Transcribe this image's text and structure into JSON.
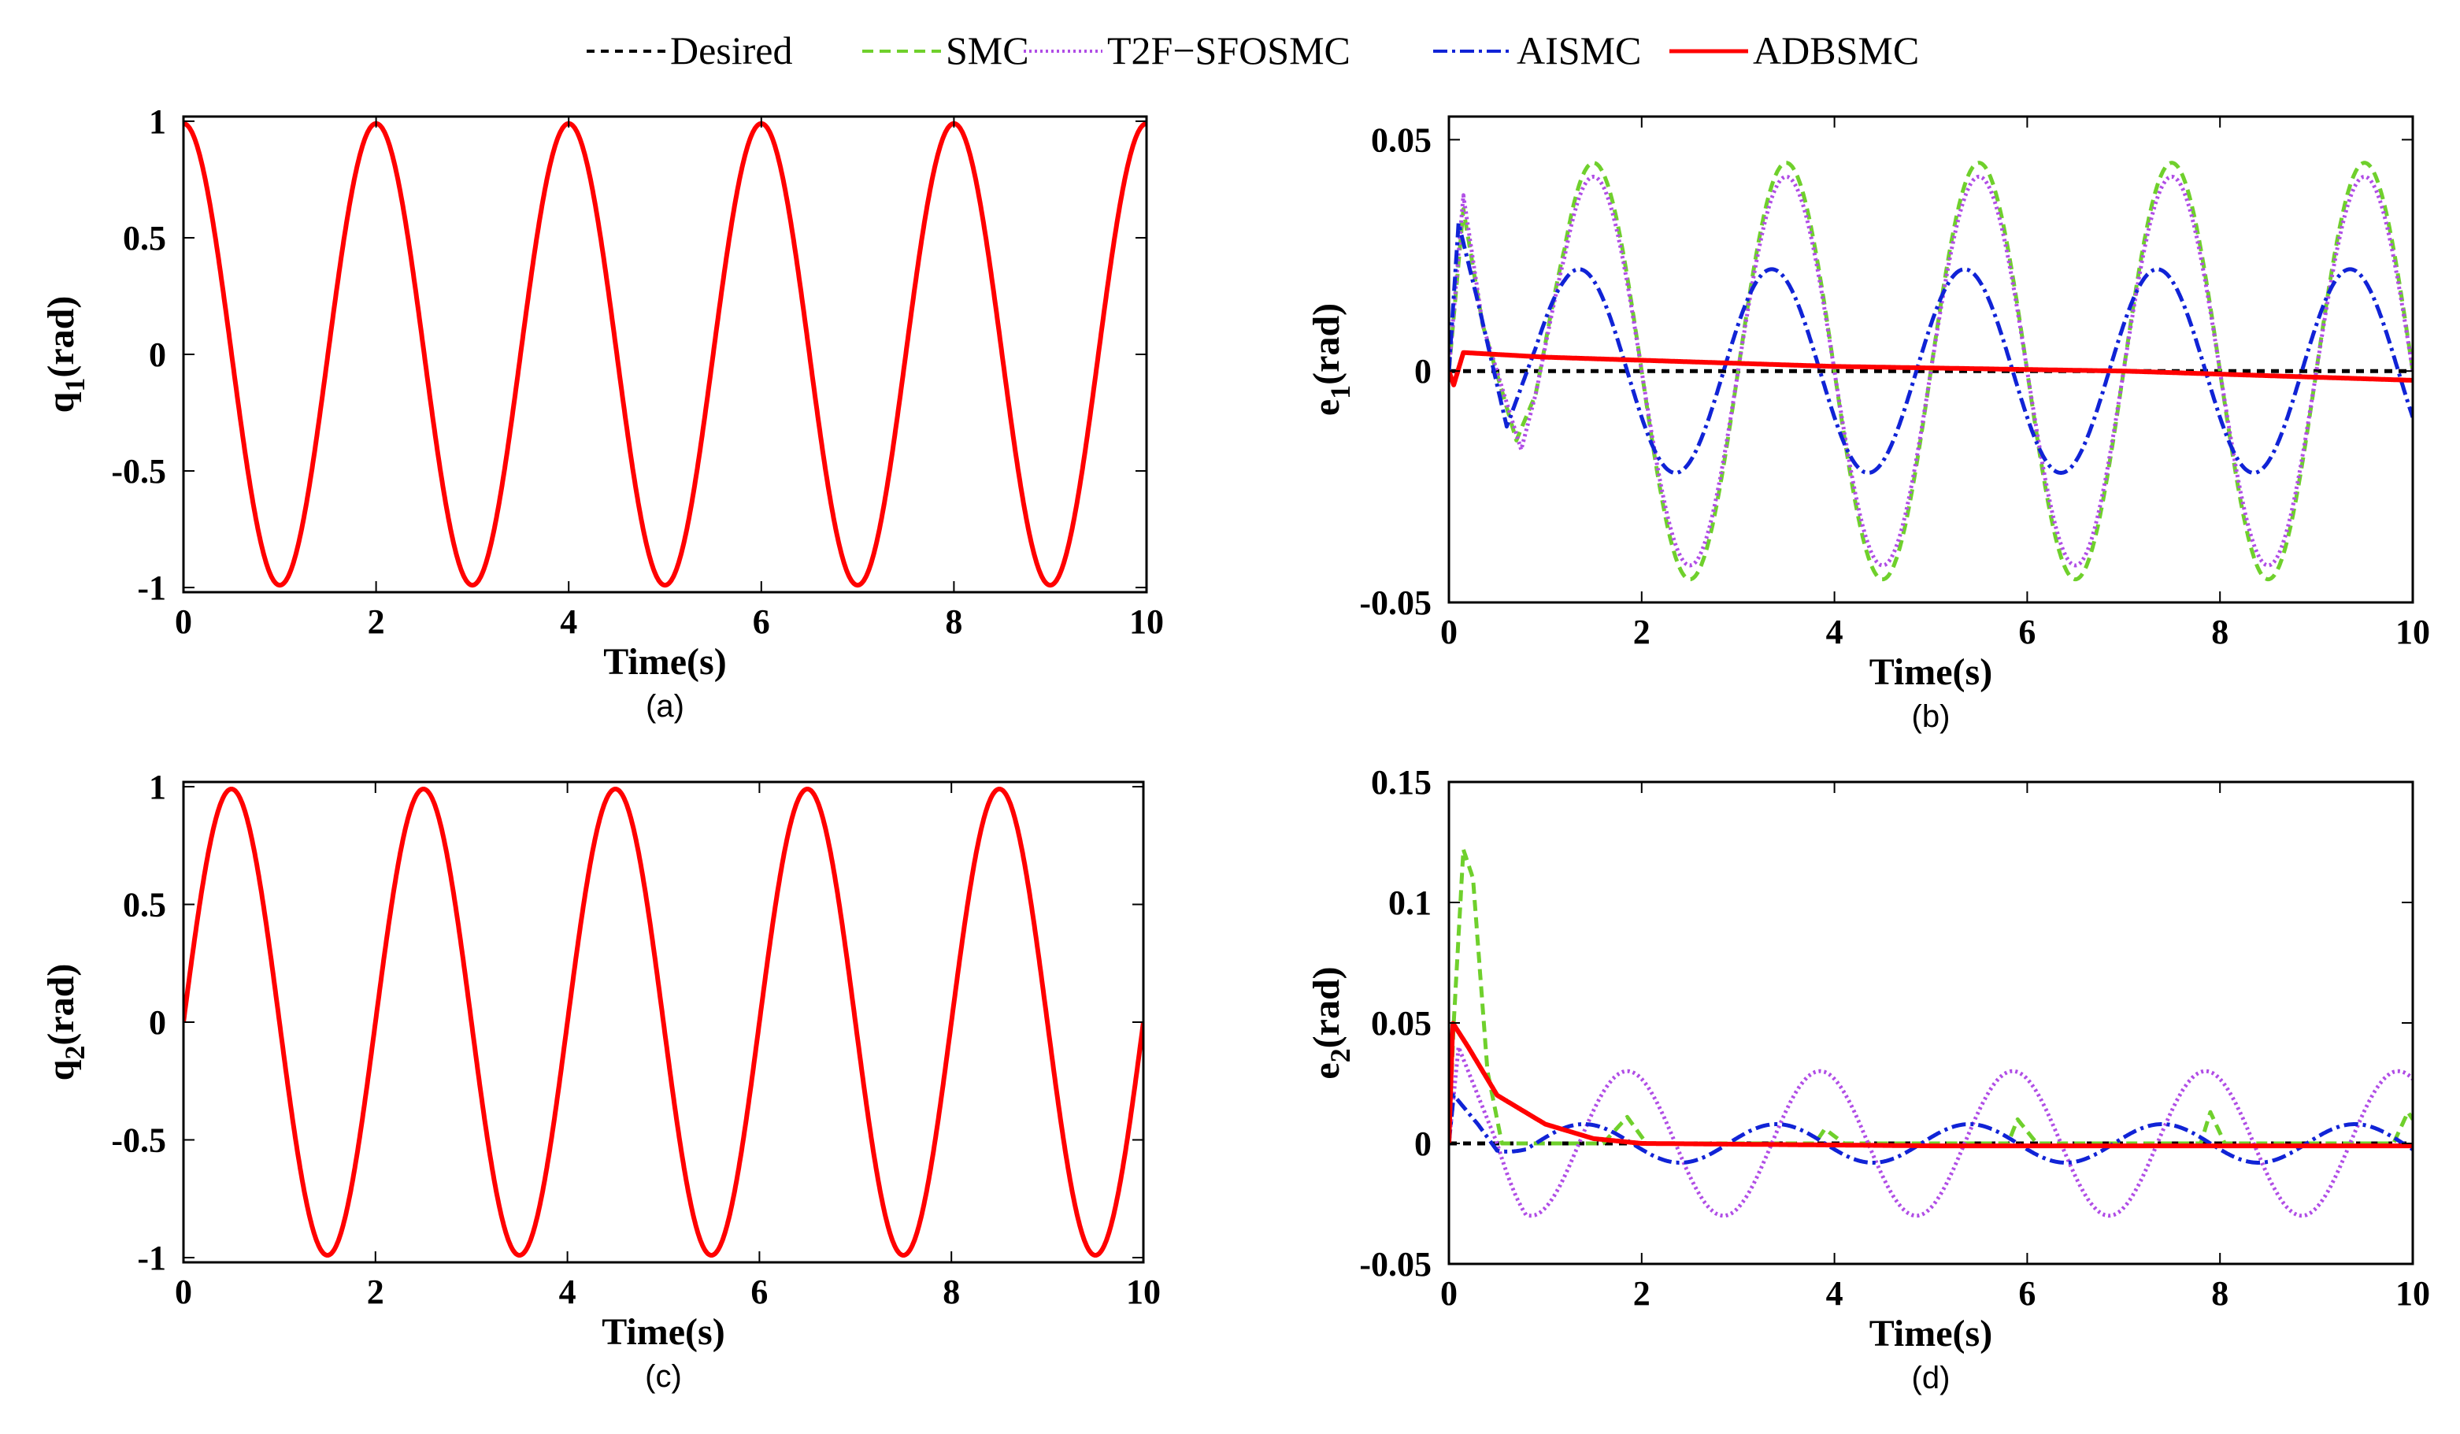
{
  "legend": {
    "entries": [
      {
        "label": "Desired",
        "color": "#000000",
        "dash": "10,8",
        "width": 4
      },
      {
        "label": "SMC",
        "color": "#6fd02c",
        "dash": "14,8",
        "width": 4
      },
      {
        "label": "T2F−SFOSMC",
        "color": "#b04de6",
        "dash": "3,4",
        "width": 4
      },
      {
        "label": "AISMC",
        "color": "#1023d6",
        "dash": "18,6,4,6",
        "width": 4
      },
      {
        "label": "ADBSMC",
        "color": "#ff0000",
        "dash": "",
        "width": 5
      }
    ]
  },
  "chart_data": [
    {
      "id": "a",
      "type": "line",
      "subtitle": "(a)",
      "xlabel": "Time(s)",
      "ylabel": "q",
      "ylabel_sub": "1",
      "ylabel_unit": "(rad)",
      "xlim": [
        0,
        10
      ],
      "ylim": [
        -1.02,
        1.02
      ],
      "xticks": [
        "0",
        "2",
        "4",
        "6",
        "8",
        "10"
      ],
      "yticks": [
        "1",
        "0.5",
        "0",
        "-0.5",
        "-1"
      ],
      "series": [
        {
          "name": "AISMC",
          "signal": "cos(pi*t)",
          "offset": 0.01
        },
        {
          "name": "ADBSMC",
          "signal": "cos(pi*t)",
          "offset": -0.01
        }
      ]
    },
    {
      "id": "b",
      "type": "line",
      "subtitle": "(b)",
      "xlabel": "Time(s)",
      "ylabel": "e",
      "ylabel_sub": "1",
      "ylabel_unit": "(rad)",
      "xlim": [
        0,
        10
      ],
      "ylim": [
        -0.05,
        0.055
      ],
      "xticks": [
        "0",
        "2",
        "4",
        "6",
        "8",
        "10"
      ],
      "yticks": [
        "0.05",
        "0",
        "-0.05"
      ],
      "series": [
        {
          "name": "Desired",
          "peaks": [],
          "const": 0
        },
        {
          "name": "SMC",
          "amp": 0.045,
          "period": 2.0,
          "phase": 1.5,
          "start": 0.9,
          "early": [
            [
              0,
              0
            ],
            [
              0.15,
              0.035
            ],
            [
              0.35,
              0.01
            ],
            [
              0.7,
              -0.015
            ],
            [
              0.9,
              -0.005
            ]
          ]
        },
        {
          "name": "T2F−SFOSMC",
          "amp": 0.042,
          "period": 2.0,
          "phase": 1.5,
          "start": 0.9,
          "early": [
            [
              0,
              0
            ],
            [
              0.15,
              0.038
            ],
            [
              0.35,
              0.01
            ],
            [
              0.75,
              -0.017
            ],
            [
              0.9,
              -0.005
            ]
          ]
        },
        {
          "name": "AISMC",
          "amp": 0.022,
          "period": 2.0,
          "phase": 1.35,
          "start": 0.9,
          "early": [
            [
              0,
              0
            ],
            [
              0.1,
              0.032
            ],
            [
              0.3,
              0.015
            ],
            [
              0.6,
              -0.012
            ],
            [
              0.9,
              0.005
            ]
          ]
        },
        {
          "name": "ADBSMC",
          "early": [
            [
              0,
              0
            ],
            [
              0.05,
              -0.003
            ],
            [
              0.15,
              0.004
            ],
            [
              1.0,
              0.003
            ],
            [
              4.0,
              0.001
            ],
            [
              7.0,
              0.0
            ],
            [
              10,
              -0.002
            ]
          ]
        }
      ]
    },
    {
      "id": "c",
      "type": "line",
      "subtitle": "(c)",
      "xlabel": "Time(s)",
      "ylabel": "q",
      "ylabel_sub": "2",
      "ylabel_unit": "(rad)",
      "xlim": [
        0,
        10
      ],
      "ylim": [
        -1.02,
        1.02
      ],
      "xticks": [
        "0",
        "2",
        "4",
        "6",
        "8",
        "10"
      ],
      "yticks": [
        "1",
        "0.5",
        "0",
        "-0.5",
        "-1"
      ],
      "series": [
        {
          "name": "AISMC",
          "signal": "sin(pi*t)",
          "offset": 0.01
        },
        {
          "name": "ADBSMC",
          "signal": "sin(pi*t)",
          "offset": -0.01
        }
      ]
    },
    {
      "id": "d",
      "type": "line",
      "subtitle": "(d)",
      "xlabel": "Time(s)",
      "ylabel": "e",
      "ylabel_sub": "2",
      "ylabel_unit": "(rad)",
      "xlim": [
        0,
        10
      ],
      "ylim": [
        -0.05,
        0.15
      ],
      "xticks": [
        "0",
        "2",
        "4",
        "6",
        "8",
        "10"
      ],
      "yticks": [
        "0.15",
        "0.1",
        "0.05",
        "0",
        "-0.05"
      ],
      "series": [
        {
          "name": "Desired",
          "const": 0
        },
        {
          "name": "SMC",
          "points": [
            [
              0,
              0
            ],
            [
              0.05,
              0.05
            ],
            [
              0.15,
              0.122
            ],
            [
              0.25,
              0.11
            ],
            [
              0.4,
              0.03
            ],
            [
              0.55,
              0.0
            ],
            [
              0.9,
              0.0
            ],
            [
              1.6,
              0.0
            ],
            [
              1.85,
              0.011
            ],
            [
              2.05,
              0.0
            ],
            [
              3.8,
              0.0
            ],
            [
              3.9,
              0.006
            ],
            [
              4.1,
              0.0
            ],
            [
              5.8,
              0.0
            ],
            [
              5.9,
              0.01
            ],
            [
              6.1,
              0.0
            ],
            [
              7.8,
              0.0
            ],
            [
              7.9,
              0.013
            ],
            [
              8.05,
              0.0
            ],
            [
              9.8,
              0.0
            ],
            [
              9.95,
              0.013
            ],
            [
              10,
              0.01
            ]
          ]
        },
        {
          "name": "T2F−SFOSMC",
          "amp": 0.03,
          "period": 2.0,
          "phase": 1.85,
          "start": 0.5,
          "early": [
            [
              0,
              0
            ],
            [
              0.1,
              0.04
            ],
            [
              0.4,
              0.01
            ],
            [
              0.5,
              0.0
            ]
          ]
        },
        {
          "name": "AISMC",
          "amp": 0.008,
          "period": 2.0,
          "phase": 1.4,
          "start": 0.5,
          "early": [
            [
              0,
              0
            ],
            [
              0.05,
              0.02
            ],
            [
              0.3,
              0.008
            ],
            [
              0.5,
              -0.003
            ]
          ]
        },
        {
          "name": "ADBSMC",
          "points": [
            [
              0,
              0
            ],
            [
              0.04,
              0.05
            ],
            [
              0.2,
              0.04
            ],
            [
              0.5,
              0.02
            ],
            [
              1.0,
              0.008
            ],
            [
              1.5,
              0.002
            ],
            [
              2.0,
              0.0
            ],
            [
              5.0,
              -0.001
            ],
            [
              10,
              -0.001
            ]
          ]
        }
      ]
    }
  ]
}
